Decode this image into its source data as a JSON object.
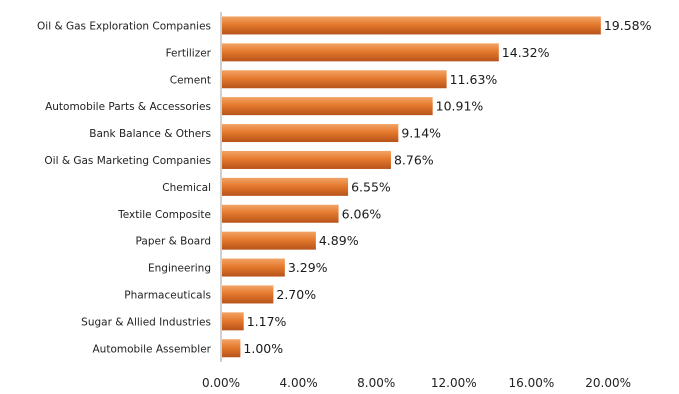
{
  "chart_data": {
    "type": "bar",
    "orientation": "horizontal",
    "title": "",
    "xlabel": "",
    "ylabel": "",
    "categories": [
      "Oil & Gas Exploration Companies",
      "Fertilizer",
      "Cement",
      "Automobile Parts & Accessories",
      "Bank Balance & Others",
      "Oil & Gas Marketing Companies",
      "Chemical",
      "Textile Composite",
      "Paper & Board",
      "Engineering",
      "Pharmaceuticals",
      "Sugar & Allied Industries",
      "Automobile Assembler"
    ],
    "values": [
      19.58,
      14.32,
      11.63,
      10.91,
      9.14,
      8.76,
      6.55,
      6.06,
      4.89,
      3.29,
      2.7,
      1.17,
      1.0
    ],
    "value_labels": [
      "19.58%",
      "14.32%",
      "11.63%",
      "10.91%",
      "9.14%",
      "8.76%",
      "6.55%",
      "6.06%",
      "4.89%",
      "3.29%",
      "2.70%",
      "1.17%",
      "1.00%"
    ],
    "xlim": [
      0,
      20
    ],
    "xticks": [
      0,
      4,
      8,
      12,
      16,
      20
    ],
    "xtick_labels": [
      "0.00%",
      "4.00%",
      "8.00%",
      "12.00%",
      "16.00%",
      "20.00%"
    ],
    "grid": false,
    "legend": "none",
    "bar_colors": {
      "light": "#f3a466",
      "mid": "#e57a2e",
      "dark": "#b7531a"
    },
    "axis_color": "#a0a0a0"
  }
}
